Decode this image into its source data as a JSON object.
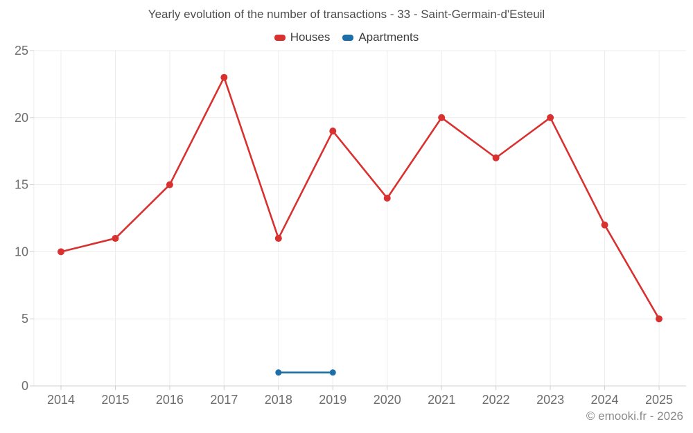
{
  "chart_data": {
    "type": "line",
    "title": "Yearly evolution of the number of transactions - 33 - Saint-Germain-d'Esteuil",
    "categories": [
      "2014",
      "2015",
      "2016",
      "2017",
      "2018",
      "2019",
      "2020",
      "2021",
      "2022",
      "2023",
      "2024",
      "2025"
    ],
    "series": [
      {
        "name": "Houses",
        "color": "#d93030",
        "values": [
          10,
          11,
          15,
          23,
          11,
          19,
          14,
          20,
          17,
          20,
          12,
          5
        ]
      },
      {
        "name": "Apartments",
        "color": "#1c6fa8",
        "values": [
          null,
          null,
          null,
          null,
          1,
          1,
          null,
          null,
          null,
          null,
          null,
          null
        ]
      }
    ],
    "xlabel": "",
    "ylabel": "",
    "yticks": [
      0,
      5,
      10,
      15,
      20,
      25
    ],
    "ylim": [
      0,
      25
    ],
    "grid": true,
    "legend_position": "top",
    "colors": {
      "grid_line": "#ececec",
      "axis_line": "#cfcfcf",
      "tick_label": "#6e6e6e",
      "title_text": "#4e4e4e",
      "legend_text": "#3d3d3d",
      "background": "#ffffff"
    }
  },
  "footer": {
    "copyright": "© emooki.fr - 2026"
  }
}
